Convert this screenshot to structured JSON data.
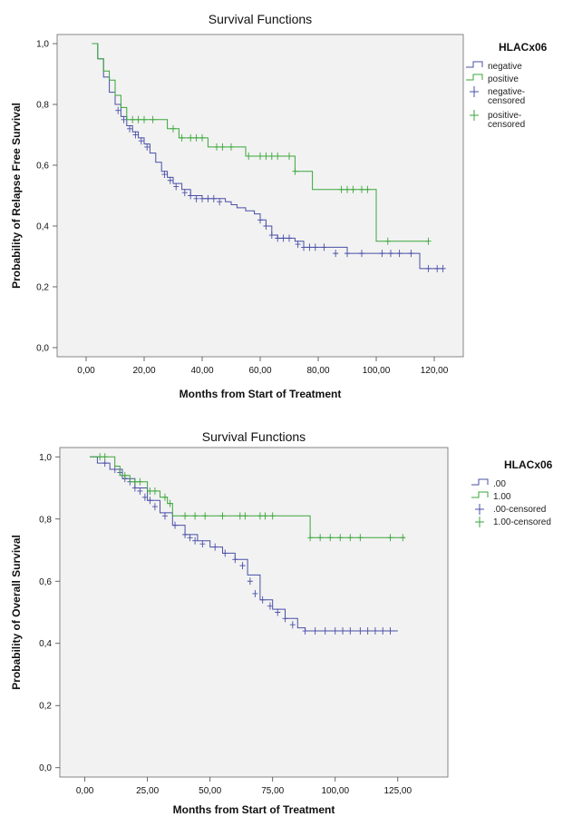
{
  "chart_data": [
    {
      "type": "line",
      "title": "Survival Functions",
      "xlabel": "Months from Start of Treatment",
      "ylabel": "Probability of Relapse Free Survival",
      "xlim": [
        -10,
        130
      ],
      "ylim": [
        -0.03,
        1.03
      ],
      "xticks": [
        0,
        20,
        40,
        60,
        80,
        100,
        120
      ],
      "xtick_labels": [
        "0,00",
        "20,00",
        "40,00",
        "60,00",
        "80,00",
        "100,00",
        "120,00"
      ],
      "yticks": [
        0,
        0.2,
        0.4,
        0.6,
        0.8,
        1.0
      ],
      "ytick_labels": [
        "0,0",
        "0,2",
        "0,4",
        "0,6",
        "0,8",
        "1,0"
      ],
      "legend": {
        "title": "HLACx06",
        "placement": "right",
        "entries": [
          {
            "label": "negative",
            "kind": "line",
            "color": "#4a4fa6"
          },
          {
            "label": "positive",
            "kind": "line",
            "color": "#3aa63a"
          },
          {
            "label": "negative-\ncensored",
            "kind": "censor",
            "color": "#4a4fa6"
          },
          {
            "label": "positive-\ncensored",
            "kind": "censor",
            "color": "#3aa63a"
          }
        ]
      },
      "series": [
        {
          "name": "negative",
          "color": "#4a4fa6",
          "x": [
            2,
            4,
            6,
            8,
            10,
            12,
            14,
            16,
            18,
            20,
            22,
            24,
            26,
            28,
            30,
            33,
            36,
            40,
            45,
            48,
            50,
            52,
            55,
            58,
            60,
            62,
            64,
            66,
            70,
            72,
            75,
            80,
            85,
            90,
            100,
            110,
            115,
            120,
            123
          ],
          "y": [
            1.0,
            0.95,
            0.89,
            0.84,
            0.8,
            0.76,
            0.73,
            0.71,
            0.69,
            0.67,
            0.64,
            0.61,
            0.58,
            0.56,
            0.54,
            0.52,
            0.5,
            0.49,
            0.49,
            0.48,
            0.47,
            0.46,
            0.45,
            0.44,
            0.42,
            0.4,
            0.37,
            0.36,
            0.36,
            0.35,
            0.33,
            0.33,
            0.33,
            0.31,
            0.31,
            0.31,
            0.26,
            0.26,
            0.26
          ],
          "censored": [
            [
              11,
              0.78
            ],
            [
              13,
              0.75
            ],
            [
              15,
              0.72
            ],
            [
              17,
              0.7
            ],
            [
              19,
              0.68
            ],
            [
              21,
              0.66
            ],
            [
              27,
              0.57
            ],
            [
              29,
              0.55
            ],
            [
              31,
              0.53
            ],
            [
              34,
              0.51
            ],
            [
              36,
              0.5
            ],
            [
              38,
              0.49
            ],
            [
              40,
              0.49
            ],
            [
              42,
              0.49
            ],
            [
              44,
              0.49
            ],
            [
              46,
              0.48
            ],
            [
              60,
              0.42
            ],
            [
              62,
              0.4
            ],
            [
              64,
              0.37
            ],
            [
              66,
              0.36
            ],
            [
              68,
              0.36
            ],
            [
              70,
              0.36
            ],
            [
              73,
              0.34
            ],
            [
              75,
              0.33
            ],
            [
              77,
              0.33
            ],
            [
              79,
              0.33
            ],
            [
              82,
              0.33
            ],
            [
              86,
              0.31
            ],
            [
              90,
              0.31
            ],
            [
              95,
              0.31
            ],
            [
              102,
              0.31
            ],
            [
              105,
              0.31
            ],
            [
              108,
              0.31
            ],
            [
              112,
              0.31
            ],
            [
              118,
              0.26
            ],
            [
              121,
              0.26
            ],
            [
              123,
              0.26
            ]
          ]
        },
        {
          "name": "positive",
          "color": "#3aa63a",
          "x": [
            2,
            4,
            6,
            8,
            10,
            12,
            14,
            25,
            28,
            32,
            42,
            48,
            55,
            70,
            72,
            78,
            90,
            100,
            118
          ],
          "y": [
            1.0,
            0.95,
            0.91,
            0.88,
            0.83,
            0.79,
            0.75,
            0.75,
            0.72,
            0.69,
            0.66,
            0.66,
            0.63,
            0.63,
            0.58,
            0.52,
            0.52,
            0.35,
            0.35
          ],
          "censored": [
            [
              16,
              0.75
            ],
            [
              18,
              0.75
            ],
            [
              20,
              0.75
            ],
            [
              23,
              0.75
            ],
            [
              30,
              0.72
            ],
            [
              33,
              0.69
            ],
            [
              36,
              0.69
            ],
            [
              38,
              0.69
            ],
            [
              40,
              0.69
            ],
            [
              45,
              0.66
            ],
            [
              47,
              0.66
            ],
            [
              50,
              0.66
            ],
            [
              56,
              0.63
            ],
            [
              60,
              0.63
            ],
            [
              62,
              0.63
            ],
            [
              64,
              0.63
            ],
            [
              66,
              0.63
            ],
            [
              70,
              0.63
            ],
            [
              72,
              0.58
            ],
            [
              88,
              0.52
            ],
            [
              90,
              0.52
            ],
            [
              92,
              0.52
            ],
            [
              95,
              0.52
            ],
            [
              97,
              0.52
            ],
            [
              104,
              0.35
            ],
            [
              118,
              0.35
            ]
          ]
        }
      ]
    },
    {
      "type": "line",
      "title": "Survival Functions",
      "xlabel": "Months from Start of Treatment",
      "ylabel": "Probability of Overall Survival",
      "xlim": [
        -10,
        145
      ],
      "ylim": [
        -0.03,
        1.03
      ],
      "xticks": [
        0,
        25,
        50,
        75,
        100,
        125
      ],
      "xtick_labels": [
        "0,00",
        "25,00",
        "50,00",
        "75,00",
        "100,00",
        "125,00"
      ],
      "yticks": [
        0,
        0.2,
        0.4,
        0.6,
        0.8,
        1.0
      ],
      "ytick_labels": [
        "0,0",
        "0,2",
        "0,4",
        "0,6",
        "0,8",
        "1,0"
      ],
      "legend": {
        "title": "HLACx06",
        "placement": "right",
        "entries": [
          {
            "label": ".00",
            "kind": "line",
            "color": "#4a4fa6"
          },
          {
            "label": "1.00",
            "kind": "line",
            "color": "#3aa63a"
          },
          {
            "label": ".00-censored",
            "kind": "censor",
            "color": "#4a4fa6"
          },
          {
            "label": "1.00-censored",
            "kind": "censor",
            "color": "#3aa63a"
          }
        ]
      },
      "series": [
        {
          "name": ".00",
          "color": "#4a4fa6",
          "x": [
            2,
            5,
            10,
            15,
            20,
            25,
            30,
            35,
            40,
            45,
            50,
            55,
            60,
            65,
            70,
            75,
            80,
            85,
            88,
            95,
            110,
            125
          ],
          "y": [
            1.0,
            0.98,
            0.96,
            0.93,
            0.9,
            0.86,
            0.82,
            0.78,
            0.75,
            0.73,
            0.71,
            0.69,
            0.67,
            0.62,
            0.54,
            0.51,
            0.48,
            0.45,
            0.44,
            0.44,
            0.44,
            0.44
          ],
          "censored": [
            [
              8,
              0.98
            ],
            [
              12,
              0.96
            ],
            [
              14,
              0.95
            ],
            [
              16,
              0.93
            ],
            [
              18,
              0.92
            ],
            [
              20,
              0.9
            ],
            [
              22,
              0.89
            ],
            [
              24,
              0.87
            ],
            [
              26,
              0.86
            ],
            [
              28,
              0.84
            ],
            [
              32,
              0.81
            ],
            [
              36,
              0.78
            ],
            [
              40,
              0.75
            ],
            [
              42,
              0.74
            ],
            [
              44,
              0.73
            ],
            [
              47,
              0.72
            ],
            [
              52,
              0.71
            ],
            [
              56,
              0.69
            ],
            [
              60,
              0.67
            ],
            [
              63,
              0.65
            ],
            [
              66,
              0.6
            ],
            [
              68,
              0.56
            ],
            [
              71,
              0.54
            ],
            [
              74,
              0.52
            ],
            [
              77,
              0.5
            ],
            [
              80,
              0.48
            ],
            [
              83,
              0.46
            ],
            [
              88,
              0.44
            ],
            [
              92,
              0.44
            ],
            [
              96,
              0.44
            ],
            [
              100,
              0.44
            ],
            [
              103,
              0.44
            ],
            [
              106,
              0.44
            ],
            [
              110,
              0.44
            ],
            [
              113,
              0.44
            ],
            [
              116,
              0.44
            ],
            [
              119,
              0.44
            ],
            [
              122,
              0.44
            ]
          ]
        },
        {
          "name": "1.00",
          "color": "#3aa63a",
          "x": [
            2,
            10,
            12,
            14,
            18,
            25,
            30,
            33,
            35,
            85,
            90,
            128
          ],
          "y": [
            1.0,
            1.0,
            0.97,
            0.94,
            0.92,
            0.89,
            0.87,
            0.85,
            0.81,
            0.81,
            0.74,
            0.74
          ],
          "censored": [
            [
              6,
              1.0
            ],
            [
              8,
              1.0
            ],
            [
              16,
              0.94
            ],
            [
              20,
              0.92
            ],
            [
              22,
              0.92
            ],
            [
              26,
              0.89
            ],
            [
              28,
              0.89
            ],
            [
              32,
              0.87
            ],
            [
              34,
              0.85
            ],
            [
              40,
              0.81
            ],
            [
              44,
              0.81
            ],
            [
              48,
              0.81
            ],
            [
              55,
              0.81
            ],
            [
              62,
              0.81
            ],
            [
              64,
              0.81
            ],
            [
              70,
              0.81
            ],
            [
              72,
              0.81
            ],
            [
              75,
              0.81
            ],
            [
              90,
              0.74
            ],
            [
              94,
              0.74
            ],
            [
              98,
              0.74
            ],
            [
              102,
              0.74
            ],
            [
              106,
              0.74
            ],
            [
              110,
              0.74
            ],
            [
              122,
              0.74
            ],
            [
              127,
              0.74
            ]
          ]
        }
      ]
    }
  ]
}
